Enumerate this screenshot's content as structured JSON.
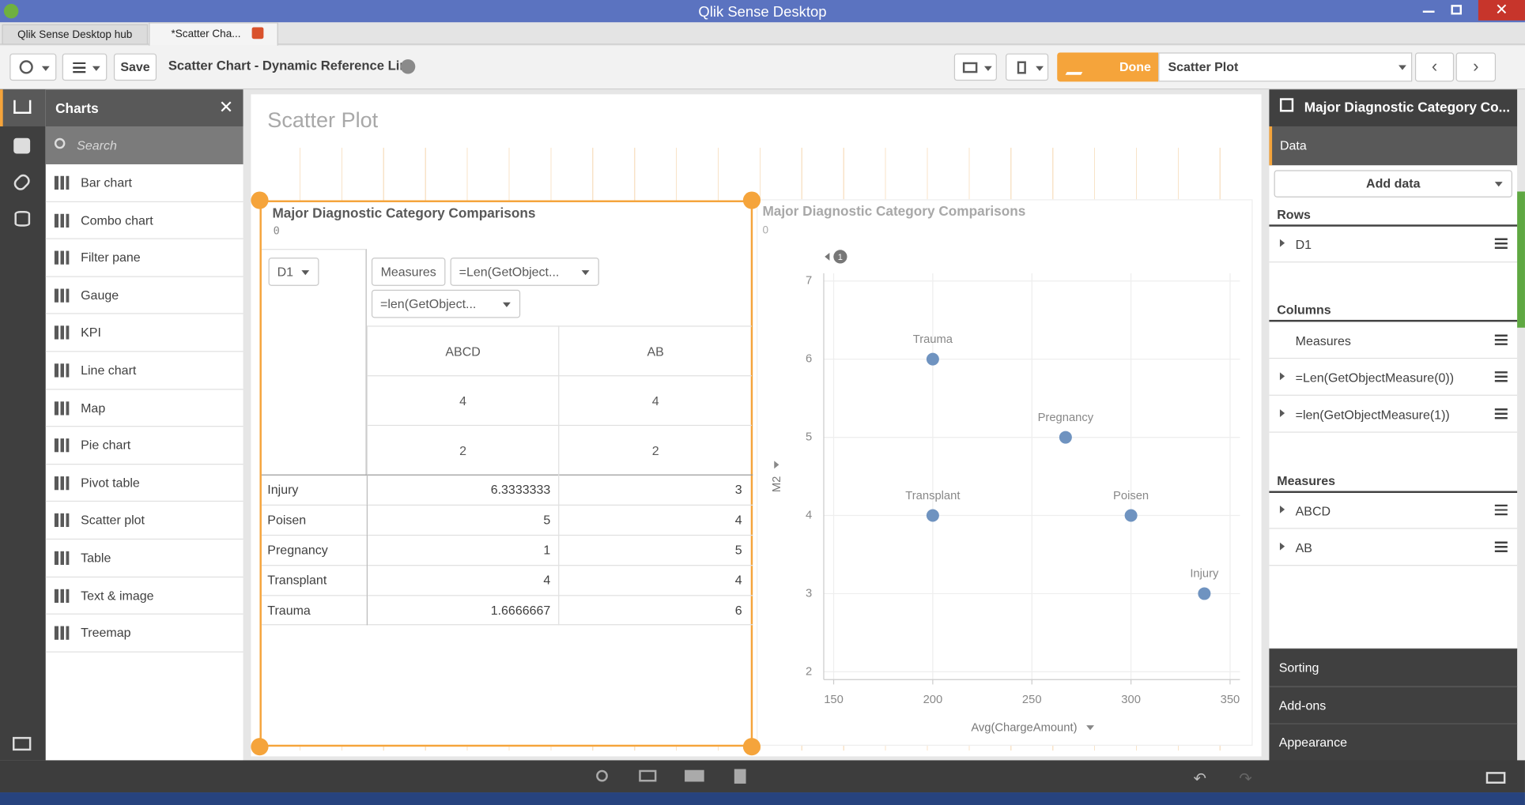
{
  "window": {
    "title": "Qlik Sense Desktop"
  },
  "tabs": [
    "Qlik Sense Desktop hub",
    "*Scatter Cha..."
  ],
  "toolbar": {
    "save": "Save",
    "sheet_title": "Scatter Chart - Dynamic Reference Line",
    "done": "Done",
    "mode_title": "Scatter Plot"
  },
  "charts_panel": {
    "title": "Charts",
    "search_placeholder": "Search",
    "items": [
      "Bar chart",
      "Combo chart",
      "Filter pane",
      "Gauge",
      "KPI",
      "Line chart",
      "Map",
      "Pie chart",
      "Pivot table",
      "Scatter plot",
      "Table",
      "Text & image",
      "Treemap"
    ]
  },
  "sheet": {
    "title": "Scatter Plot"
  },
  "table": {
    "title": "Major Diagnostic Category Comparisons",
    "subtitle": "0",
    "row_dimension": "D1",
    "column_fields": [
      "Measures",
      "=Len(GetObject...",
      "=len(GetObject..."
    ],
    "column_headers": [
      [
        "ABCD",
        "AB"
      ],
      [
        4,
        4
      ],
      [
        2,
        2
      ]
    ],
    "rows": [
      [
        "Injury",
        6.3333333,
        3
      ],
      [
        "Poisen",
        5,
        4
      ],
      [
        "Pregnancy",
        1,
        5
      ],
      [
        "Transplant",
        4,
        4
      ],
      [
        "Trauma",
        1.6666667,
        6
      ]
    ]
  },
  "chart_data": {
    "type": "scatter",
    "title": "Major Diagnostic Category Comparisons",
    "subtitle": "0",
    "badge": "1",
    "x_label": "Avg(ChargeAmount)",
    "y_label": "M2",
    "labels": [
      "Trauma",
      "Pregnancy",
      "Transplant",
      "Poisen",
      "Injury"
    ],
    "x": [
      200,
      267,
      200,
      300,
      337
    ],
    "values": [
      6,
      5,
      4,
      4,
      3
    ],
    "color": "#6f93c0",
    "xlim": [
      145,
      355
    ],
    "ylim": [
      1.9,
      7.1
    ],
    "xticks": [
      150,
      200,
      250,
      300,
      350
    ],
    "yticks": [
      2,
      3,
      4,
      5,
      6,
      7
    ],
    "grid": true
  },
  "properties_panel": {
    "title": "Major Diagnostic Category Co...",
    "tab": "Data",
    "add_data": "Add data",
    "rows_heading": "Rows",
    "rows": [
      "D1"
    ],
    "columns_heading": "Columns",
    "columns": [
      "Measures",
      "=Len(GetObjectMeasure(0))",
      "=len(GetObjectMeasure(1))"
    ],
    "measures_heading": "Measures",
    "measures": [
      "ABCD",
      "AB"
    ],
    "sections": [
      "Sorting",
      "Add-ons",
      "Appearance"
    ]
  }
}
